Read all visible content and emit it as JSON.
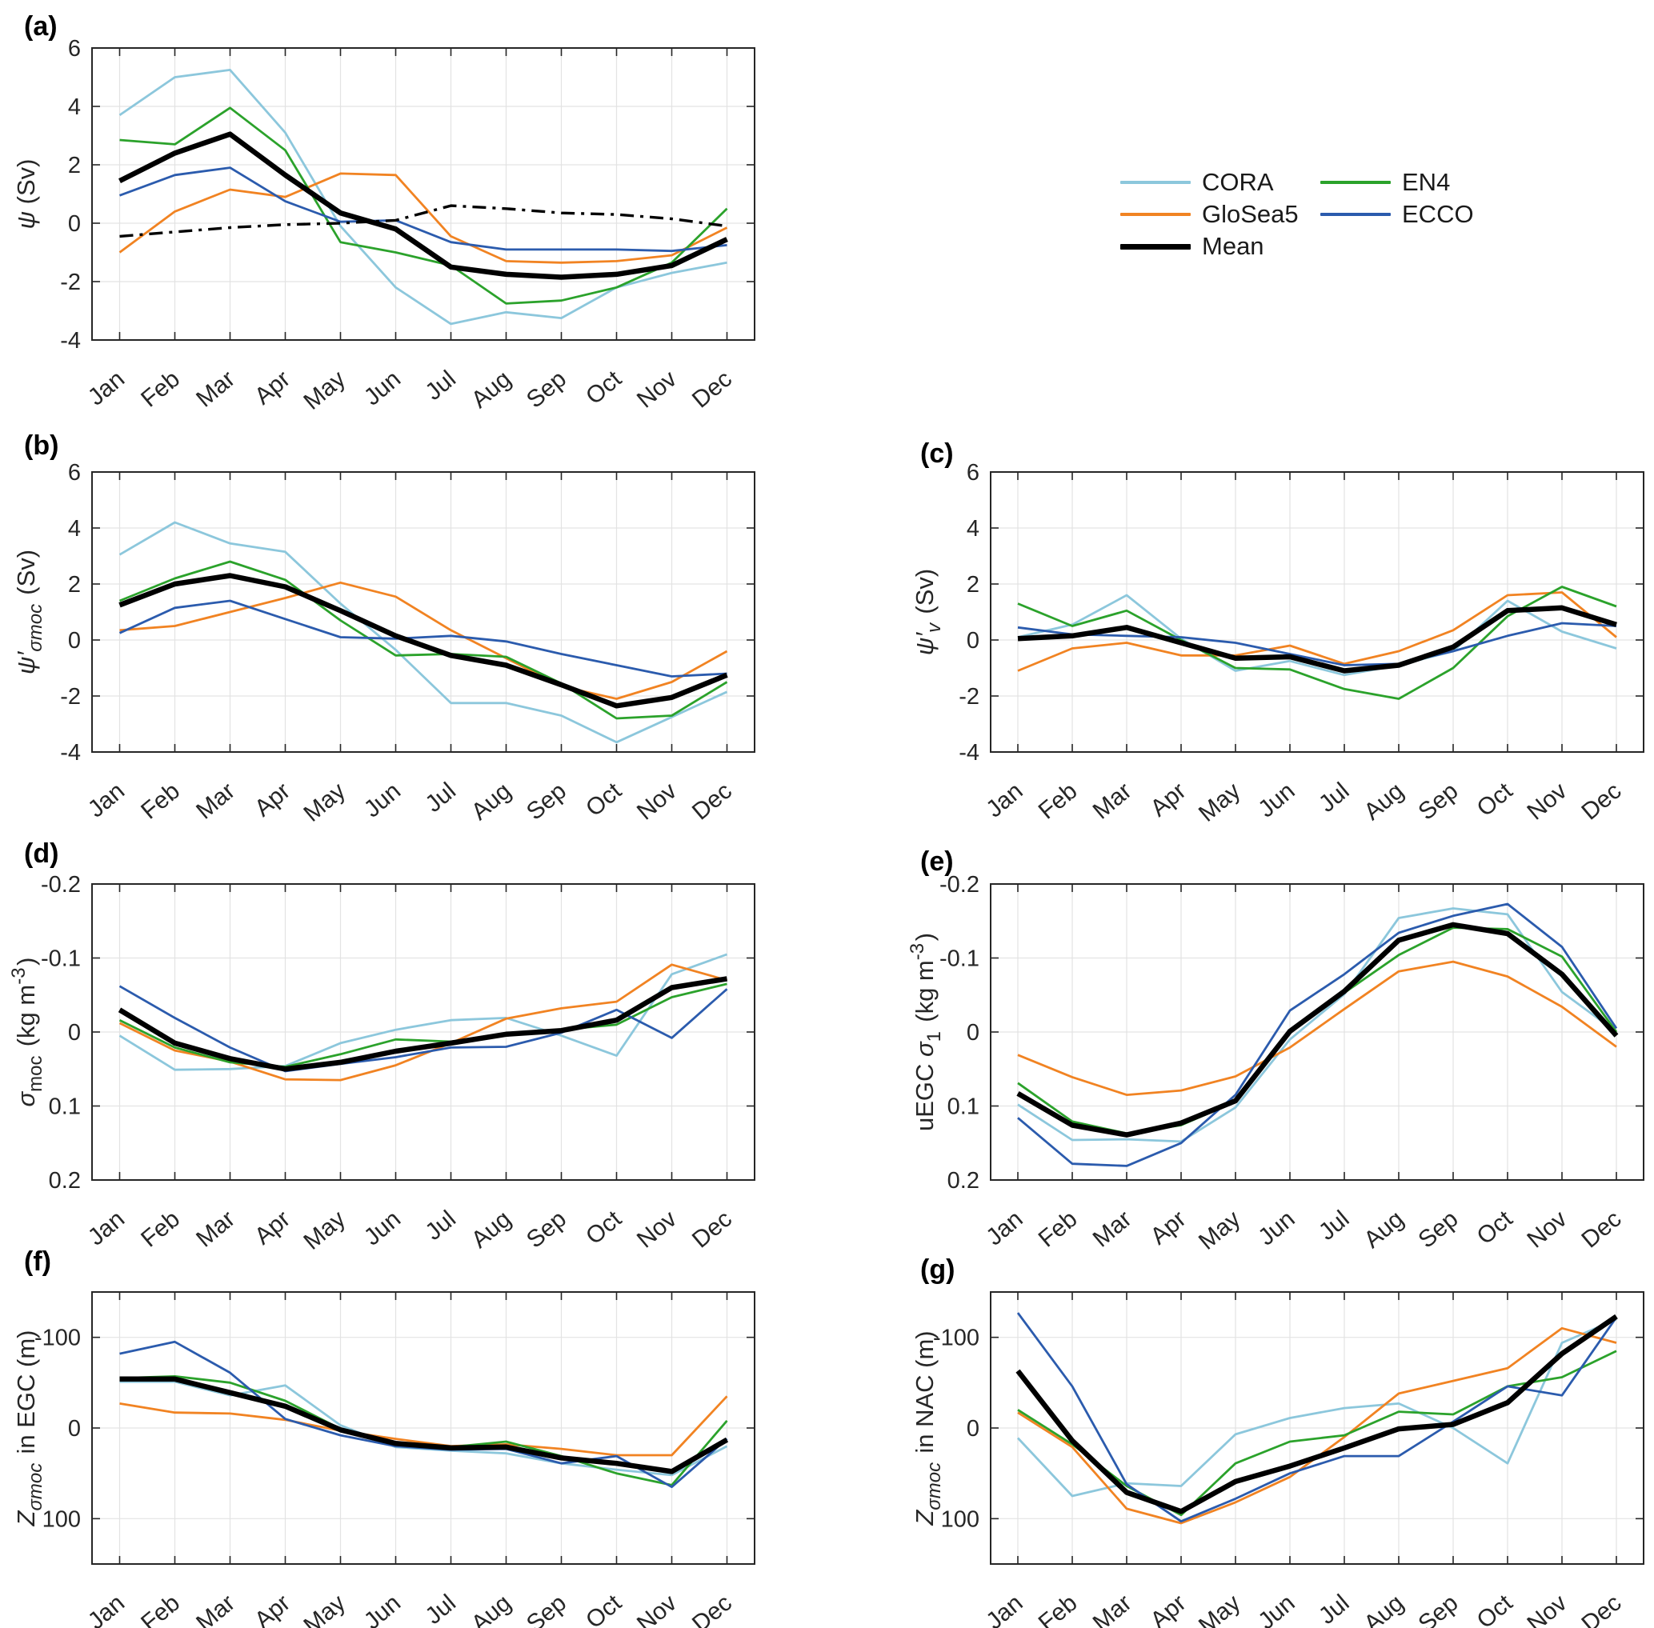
{
  "figure": {
    "background": "#ffffff",
    "months": [
      "Jan",
      "Feb",
      "Mar",
      "Apr",
      "May",
      "Jun",
      "Jul",
      "Aug",
      "Sep",
      "Oct",
      "Nov",
      "Dec"
    ]
  },
  "legend": {
    "entries": [
      {
        "label": "CORA",
        "key": "CORA"
      },
      {
        "label": "GloSea5",
        "key": "GloSea5"
      },
      {
        "label": "Mean",
        "key": "Mean"
      },
      {
        "label": "EN4",
        "key": "EN4"
      },
      {
        "label": "ECCO",
        "key": "ECCO"
      }
    ]
  },
  "styles": {
    "CORA": {
      "color": "#8CC7DC",
      "width": 2.8
    },
    "GloSea5": {
      "color": "#F18322",
      "width": 2.8
    },
    "EN4": {
      "color": "#2BA22B",
      "width": 2.8
    },
    "ECCO": {
      "color": "#2B5BAD",
      "width": 2.8
    },
    "Mean": {
      "color": "#000000",
      "width": 6.5
    },
    "dash-dot": {
      "color": "#000000",
      "width": 3.4,
      "dash": "17 8 4 8"
    },
    "grid_color": "#E3E3E3",
    "axis_color": "#262626",
    "text_color": "#262626"
  },
  "chart_data": [
    {
      "id": "a",
      "type": "line",
      "letter": "(a)",
      "ylabel_parts": [
        {
          "t": "ψ",
          "i": 1
        },
        {
          "t": " (Sv)"
        }
      ],
      "ylim": [
        -4,
        6
      ],
      "yticks": [
        6,
        4,
        2,
        0,
        -2,
        -4
      ],
      "inverted": false,
      "grid": true,
      "legend_position": "outside-right",
      "series": [
        {
          "name": "CORA",
          "values": [
            3.7,
            5.0,
            5.25,
            3.1,
            -0.1,
            -2.2,
            -3.45,
            -3.05,
            -3.25,
            -2.2,
            -1.7,
            -1.35
          ]
        },
        {
          "name": "GloSea5",
          "values": [
            -1.0,
            0.4,
            1.15,
            0.9,
            1.7,
            1.65,
            -0.45,
            -1.3,
            -1.35,
            -1.3,
            -1.1,
            -0.15
          ]
        },
        {
          "name": "EN4",
          "values": [
            2.85,
            2.7,
            3.95,
            2.5,
            -0.65,
            -1.0,
            -1.45,
            -2.75,
            -2.65,
            -2.2,
            -1.35,
            0.5
          ]
        },
        {
          "name": "ECCO",
          "values": [
            0.95,
            1.65,
            1.9,
            0.75,
            0.05,
            0.1,
            -0.65,
            -0.9,
            -0.9,
            -0.9,
            -0.95,
            -0.75
          ]
        },
        {
          "name": "Mean",
          "values": [
            1.45,
            2.4,
            3.05,
            1.65,
            0.35,
            -0.2,
            -1.5,
            -1.75,
            -1.85,
            -1.75,
            -1.45,
            -0.55
          ]
        },
        {
          "name": "dash-dot",
          "values": [
            -0.45,
            -0.3,
            -0.15,
            -0.05,
            0.0,
            0.1,
            0.6,
            0.5,
            0.35,
            0.3,
            0.15,
            -0.1
          ]
        }
      ]
    },
    {
      "id": "b",
      "type": "line",
      "letter": "(b)",
      "ylabel_parts": [
        {
          "t": "ψ",
          "i": 1
        },
        {
          "t": "′",
          "i": 1
        },
        {
          "t": "σmoc",
          "sub": 1,
          "i": 1
        },
        {
          "t": " (Sv)"
        }
      ],
      "ylim": [
        -4,
        6
      ],
      "yticks": [
        6,
        4,
        2,
        0,
        -2,
        -4
      ],
      "inverted": false,
      "grid": true,
      "series": [
        {
          "name": "CORA",
          "values": [
            3.05,
            4.2,
            3.45,
            3.15,
            1.3,
            -0.35,
            -2.25,
            -2.25,
            -2.7,
            -3.65,
            -2.75,
            -1.85
          ]
        },
        {
          "name": "GloSea5",
          "values": [
            0.35,
            0.5,
            1.0,
            1.5,
            2.05,
            1.55,
            0.35,
            -0.65,
            -1.65,
            -2.1,
            -1.5,
            -0.4
          ]
        },
        {
          "name": "EN4",
          "values": [
            1.4,
            2.2,
            2.8,
            2.15,
            0.7,
            -0.55,
            -0.5,
            -0.6,
            -1.55,
            -2.8,
            -2.7,
            -1.5
          ]
        },
        {
          "name": "ECCO",
          "values": [
            0.25,
            1.15,
            1.4,
            0.75,
            0.1,
            0.05,
            0.15,
            -0.05,
            -0.5,
            -0.9,
            -1.3,
            -1.2
          ]
        },
        {
          "name": "Mean",
          "values": [
            1.25,
            2.0,
            2.3,
            1.9,
            1.05,
            0.15,
            -0.55,
            -0.9,
            -1.6,
            -2.35,
            -2.05,
            -1.25
          ]
        }
      ]
    },
    {
      "id": "c",
      "type": "line",
      "letter": "(c)",
      "ylabel_parts": [
        {
          "t": "ψ",
          "i": 1
        },
        {
          "t": "′",
          "i": 1
        },
        {
          "t": "v",
          "sub": 1,
          "i": 1
        },
        {
          "t": " (Sv)"
        }
      ],
      "ylim": [
        -4,
        6
      ],
      "yticks": [
        6,
        4,
        2,
        0,
        -2,
        -4
      ],
      "inverted": false,
      "grid": true,
      "series": [
        {
          "name": "CORA",
          "values": [
            0.1,
            0.55,
            1.6,
            0.05,
            -1.1,
            -0.75,
            -1.25,
            -0.9,
            -0.4,
            1.4,
            0.3,
            -0.3
          ]
        },
        {
          "name": "GloSea5",
          "values": [
            -1.1,
            -0.3,
            -0.1,
            -0.55,
            -0.55,
            -0.2,
            -0.85,
            -0.4,
            0.35,
            1.6,
            1.7,
            0.1
          ]
        },
        {
          "name": "EN4",
          "values": [
            1.3,
            0.5,
            1.05,
            0.0,
            -1.0,
            -1.05,
            -1.75,
            -2.1,
            -1.0,
            0.85,
            1.9,
            1.2
          ]
        },
        {
          "name": "ECCO",
          "values": [
            0.45,
            0.2,
            0.15,
            0.1,
            -0.1,
            -0.5,
            -0.9,
            -0.85,
            -0.4,
            0.15,
            0.6,
            0.5
          ]
        },
        {
          "name": "Mean",
          "values": [
            0.05,
            0.15,
            0.45,
            -0.1,
            -0.65,
            -0.6,
            -1.1,
            -0.9,
            -0.25,
            1.05,
            1.15,
            0.55
          ]
        }
      ]
    },
    {
      "id": "d",
      "type": "line",
      "letter": "(d)",
      "ylabel_parts": [
        {
          "t": "σ",
          "i": 1
        },
        {
          "t": "moc",
          "sub": 1
        },
        {
          "t": "  (kg m"
        },
        {
          "t": "-3",
          "sup": 1
        },
        {
          "t": ")"
        }
      ],
      "ylim": [
        -0.2,
        0.2
      ],
      "yticks": [
        -0.2,
        -0.1,
        0,
        0.1,
        0.2
      ],
      "inverted": true,
      "grid": true,
      "series": [
        {
          "name": "CORA",
          "values": [
            0.005,
            0.051,
            0.05,
            0.046,
            0.015,
            -0.003,
            -0.016,
            -0.019,
            0.005,
            0.032,
            -0.078,
            -0.105
          ]
        },
        {
          "name": "GloSea5",
          "values": [
            -0.012,
            0.025,
            0.04,
            0.064,
            0.065,
            0.045,
            0.015,
            -0.018,
            -0.032,
            -0.041,
            -0.091,
            -0.07
          ]
        },
        {
          "name": "EN4",
          "values": [
            -0.016,
            0.021,
            0.041,
            0.047,
            0.03,
            0.01,
            0.013,
            0.004,
            -0.003,
            -0.01,
            -0.047,
            -0.065
          ]
        },
        {
          "name": "ECCO",
          "values": [
            -0.062,
            -0.019,
            0.021,
            0.053,
            0.043,
            0.034,
            0.021,
            0.02,
            0.001,
            -0.03,
            0.008,
            -0.058
          ]
        },
        {
          "name": "Mean",
          "values": [
            -0.03,
            0.015,
            0.036,
            0.05,
            0.041,
            0.026,
            0.015,
            0.003,
            -0.002,
            -0.016,
            -0.06,
            -0.072
          ]
        }
      ]
    },
    {
      "id": "e",
      "type": "line",
      "letter": "(e)",
      "ylabel_parts": [
        {
          "t": "uEGC "
        },
        {
          "t": "σ",
          "i": 1
        },
        {
          "t": "1",
          "sub": 1
        },
        {
          "t": " (kg m"
        },
        {
          "t": "-3",
          "sup": 1
        },
        {
          "t": ")"
        }
      ],
      "ylim": [
        -0.2,
        0.2
      ],
      "yticks": [
        -0.2,
        -0.1,
        0,
        0.1,
        0.2
      ],
      "inverted": true,
      "grid": true,
      "series": [
        {
          "name": "CORA",
          "values": [
            0.098,
            0.146,
            0.145,
            0.148,
            0.102,
            0.01,
            -0.051,
            -0.154,
            -0.167,
            -0.159,
            -0.054,
            0.0
          ]
        },
        {
          "name": "GloSea5",
          "values": [
            0.031,
            0.061,
            0.085,
            0.079,
            0.06,
            0.021,
            -0.031,
            -0.082,
            -0.095,
            -0.075,
            -0.034,
            0.02
          ]
        },
        {
          "name": "EN4",
          "values": [
            0.069,
            0.121,
            0.137,
            0.126,
            0.094,
            0.0,
            -0.053,
            -0.104,
            -0.141,
            -0.139,
            -0.102,
            0.0
          ]
        },
        {
          "name": "ECCO",
          "values": [
            0.116,
            0.178,
            0.181,
            0.15,
            0.085,
            -0.029,
            -0.078,
            -0.134,
            -0.157,
            -0.173,
            -0.115,
            -0.005
          ]
        },
        {
          "name": "Mean",
          "values": [
            0.083,
            0.126,
            0.139,
            0.123,
            0.093,
            -0.001,
            -0.055,
            -0.124,
            -0.145,
            -0.133,
            -0.078,
            0.005
          ]
        }
      ]
    },
    {
      "id": "f",
      "type": "line",
      "letter": "(f)",
      "ylabel_parts": [
        {
          "t": "Z",
          "i": 1
        },
        {
          "t": "σmoc",
          "sub": 1,
          "i": 1
        },
        {
          "t": "  in EGC (m)"
        }
      ],
      "ylim": [
        -150,
        150
      ],
      "yticks": [
        -100,
        0,
        100
      ],
      "inverted": true,
      "grid": true,
      "series": [
        {
          "name": "CORA",
          "values": [
            -51,
            -51,
            -36,
            -47,
            -3,
            21,
            25,
            28,
            39,
            46,
            52,
            20
          ]
        },
        {
          "name": "GloSea5",
          "values": [
            -27,
            -17,
            -16,
            -9,
            3,
            12,
            20,
            18,
            23,
            30,
            30,
            -35
          ]
        },
        {
          "name": "EN4",
          "values": [
            -55,
            -57,
            -50,
            -30,
            1,
            16,
            21,
            15,
            31,
            50,
            63,
            -8
          ]
        },
        {
          "name": "ECCO",
          "values": [
            -82,
            -95,
            -61,
            -10,
            8,
            20,
            24,
            23,
            39,
            31,
            65,
            12
          ]
        },
        {
          "name": "Mean",
          "values": [
            -54,
            -54,
            -39,
            -24,
            2,
            17,
            22,
            21,
            33,
            39,
            48,
            13
          ]
        }
      ]
    },
    {
      "id": "g",
      "type": "line",
      "letter": "(g)",
      "ylabel_parts": [
        {
          "t": "Z",
          "i": 1
        },
        {
          "t": "σmoc",
          "sub": 1,
          "i": 1
        },
        {
          "t": "  in NAC (m)"
        }
      ],
      "ylim": [
        -150,
        150
      ],
      "yticks": [
        -100,
        0,
        100
      ],
      "inverted": true,
      "grid": true,
      "series": [
        {
          "name": "CORA",
          "values": [
            11,
            75,
            61,
            64,
            7,
            -11,
            -22,
            -27,
            0,
            39,
            -94,
            -120
          ]
        },
        {
          "name": "GloSea5",
          "values": [
            -17,
            21,
            89,
            105,
            82,
            54,
            10,
            -38,
            -52,
            -66,
            -110,
            -94
          ]
        },
        {
          "name": "EN4",
          "values": [
            -20,
            18,
            64,
            96,
            39,
            15,
            8,
            -18,
            -15,
            -46,
            -56,
            -85
          ]
        },
        {
          "name": "ECCO",
          "values": [
            -127,
            -46,
            62,
            103,
            78,
            50,
            31,
            31,
            -7,
            -46,
            -36,
            -122
          ]
        },
        {
          "name": "Mean",
          "values": [
            -63,
            14,
            71,
            92,
            59,
            42,
            22,
            1,
            -4,
            -28,
            -82,
            -123
          ]
        }
      ]
    }
  ]
}
